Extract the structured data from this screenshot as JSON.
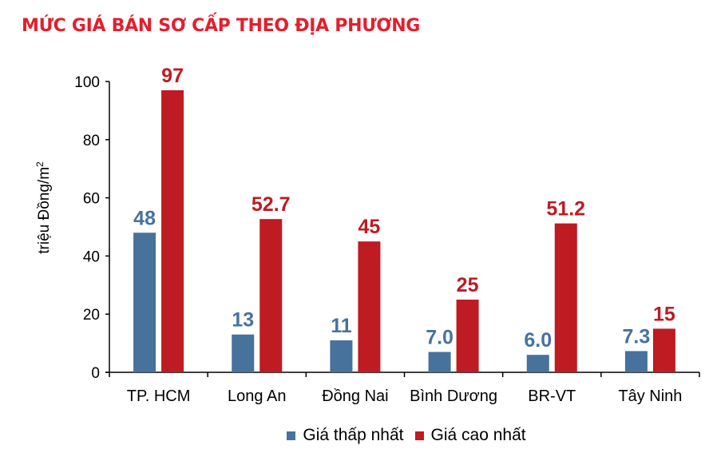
{
  "title": "MỨC GIÁ BÁN SƠ CẤP THEO ĐỊA PHƯƠNG",
  "colors": {
    "title": "#e31e2d",
    "low": "#46729c",
    "high": "#be1b22"
  },
  "chart_data": {
    "type": "bar",
    "title": "MỨC GIÁ BÁN SƠ CẤP THEO ĐỊA PHƯƠNG",
    "xlabel": "",
    "ylabel": "triệu Đồng/m2",
    "ylim": [
      0,
      100
    ],
    "yticks": [
      0,
      20,
      40,
      60,
      80,
      100
    ],
    "grid": false,
    "legend_position": "bottom",
    "categories": [
      "TP. HCM",
      "Long An",
      "Đồng  Nai",
      "Bình Dương",
      "BR-VT",
      "Tây Ninh"
    ],
    "series": [
      {
        "name": "Giá thấp nhất",
        "color": "#46729c",
        "values": [
          48,
          13,
          11,
          7.0,
          6.0,
          7.3
        ],
        "labels": [
          "48",
          "13",
          "11",
          "7.0",
          "6.0",
          "7.3"
        ]
      },
      {
        "name": "Giá cao nhất",
        "color": "#be1b22",
        "values": [
          97,
          52.7,
          45,
          25,
          51.2,
          15
        ],
        "labels": [
          "97",
          "52.7",
          "45",
          "25",
          "51.2",
          "15"
        ]
      }
    ]
  },
  "axis": {
    "ylabel_main": "triệu Đồng/m",
    "ylabel_sup": "2"
  },
  "legend": [
    {
      "label": "Giá thấp nhất",
      "color": "#46729c"
    },
    {
      "label": "Giá cao nhất",
      "color": "#be1b22"
    }
  ]
}
